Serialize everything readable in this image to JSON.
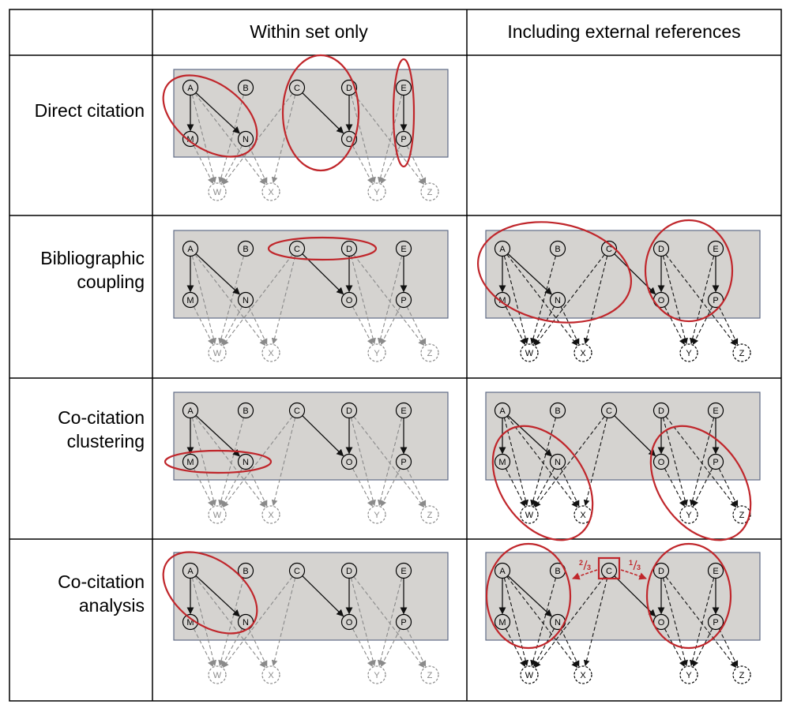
{
  "header": {
    "col_within": "Within set only",
    "col_external": "Including external references"
  },
  "rows": [
    {
      "key": "direct",
      "label_lines": [
        "Direct citation"
      ]
    },
    {
      "key": "biblio",
      "label_lines": [
        "Bibliographic",
        "coupling"
      ]
    },
    {
      "key": "cocluster",
      "label_lines": [
        "Co-citation",
        "clustering"
      ]
    },
    {
      "key": "coanalysis",
      "label_lines": [
        "Co-citation",
        "analysis"
      ]
    }
  ],
  "graph": {
    "in_set_top_nodes": [
      "A",
      "B",
      "C",
      "D",
      "E"
    ],
    "in_set_bottom_nodes": [
      "M",
      "N",
      "O",
      "P"
    ],
    "external_nodes": [
      "W",
      "X",
      "Y",
      "Z"
    ],
    "solid_citations": [
      [
        "A",
        "M"
      ],
      [
        "A",
        "N"
      ],
      [
        "C",
        "O"
      ],
      [
        "D",
        "O"
      ],
      [
        "E",
        "P"
      ]
    ],
    "external_citations": [
      [
        "A",
        "W"
      ],
      [
        "A",
        "X"
      ],
      [
        "B",
        "W"
      ],
      [
        "C",
        "W"
      ],
      [
        "C",
        "X"
      ],
      [
        "D",
        "Y"
      ],
      [
        "D",
        "Z"
      ],
      [
        "E",
        "Y"
      ],
      [
        "M",
        "W"
      ],
      [
        "N",
        "W"
      ],
      [
        "N",
        "X"
      ],
      [
        "O",
        "Y"
      ],
      [
        "P",
        "Y"
      ],
      [
        "P",
        "Z"
      ]
    ]
  },
  "annotations": {
    "weight_left_num": "2",
    "weight_left_den": "3",
    "weight_right_num": "1",
    "weight_right_den": "3"
  },
  "colors": {
    "panel_fill": "#d5d3d0",
    "panel_border": "#5f6c86",
    "highlight": "#c0262b",
    "node_fill": "#d5d3d0",
    "edge_dark": "#111111",
    "edge_faded": "#8a8a8a"
  }
}
